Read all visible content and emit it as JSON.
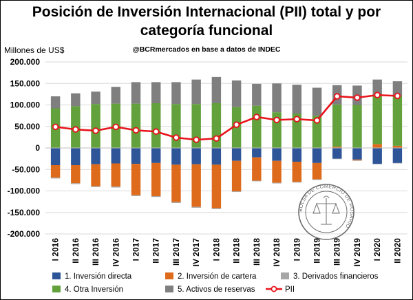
{
  "title_line1": "Posición de Inversión Internacional (PII) total y por",
  "title_line2": "categoría funcional",
  "subtitle": "@BCRmercados en base a datos de INDEC",
  "seal_text": "BOLSA DE COMERCIO DE ROSARIO",
  "chart_data": {
    "type": "bar",
    "stacked": true,
    "ylabel": "Millones de US$",
    "ylim": [
      -200000,
      200000
    ],
    "yticks": [
      -200000,
      -150000,
      -100000,
      -50000,
      0,
      50000,
      100000,
      150000,
      200000
    ],
    "ytick_labels": [
      "-200.000",
      "-150.000",
      "-100.000",
      "-50.000",
      "0",
      "50.000",
      "100.000",
      "150.000",
      "200.000"
    ],
    "grid": true,
    "legend_position": "bottom",
    "categories": [
      "I 2016",
      "II 2016",
      "III 2016",
      "IV 2016",
      "I 2017",
      "II 2017",
      "III 2017",
      "IV 2017",
      "I 2018",
      "II 2018",
      "III 2018",
      "IV 2018",
      "I 2019",
      "II 2019",
      "III 2019",
      "IV 2019",
      "I 2020",
      "II 2020"
    ],
    "series": [
      {
        "name": "1. Inversión directa",
        "color": "#2e5597",
        "values": [
          -40000,
          -40000,
          -38000,
          -36000,
          -37000,
          -35000,
          -39000,
          -38000,
          -39000,
          -30000,
          -22000,
          -30000,
          -32000,
          -35000,
          -25000,
          -27000,
          -37000,
          -35000
        ]
      },
      {
        "name": "2. Inversión de cartera",
        "color": "#de6b1c",
        "values": [
          -29000,
          -42000,
          -51000,
          -54000,
          -73000,
          -77000,
          -87000,
          -99000,
          -101000,
          -71000,
          -54000,
          -51000,
          -47000,
          -38000,
          3000,
          -2000,
          9000,
          5000
        ]
      },
      {
        "name": "3. Derivados financieros",
        "color": "#a6a6a6",
        "values": [
          -2000,
          -2000,
          -2000,
          -2000,
          -2000,
          -2000,
          -2000,
          -2000,
          -2000,
          -1500,
          -1500,
          -1500,
          -1500,
          -1500,
          -1000,
          -1000,
          -1000,
          -1000
        ]
      },
      {
        "name": "4. Otra Inversión",
        "color": "#62a13b",
        "values": [
          92000,
          97000,
          102000,
          103000,
          103000,
          104000,
          102000,
          102000,
          104000,
          95000,
          98000,
          83000,
          80000,
          75000,
          98000,
          100000,
          112000,
          115000
        ]
      },
      {
        "name": "5. Activos de reservas",
        "color": "#7f7f7f",
        "values": [
          28000,
          30000,
          29000,
          39000,
          50000,
          49000,
          51000,
          57000,
          61000,
          62000,
          51000,
          67000,
          67000,
          65000,
          45000,
          45000,
          38000,
          35000
        ]
      }
    ],
    "line_series": {
      "name": "PII",
      "color": "#e8131b",
      "values": [
        49000,
        43000,
        40000,
        49000,
        41000,
        38000,
        24000,
        19000,
        22000,
        54000,
        72000,
        65000,
        67000,
        64000,
        120000,
        117000,
        123000,
        121000
      ]
    }
  }
}
